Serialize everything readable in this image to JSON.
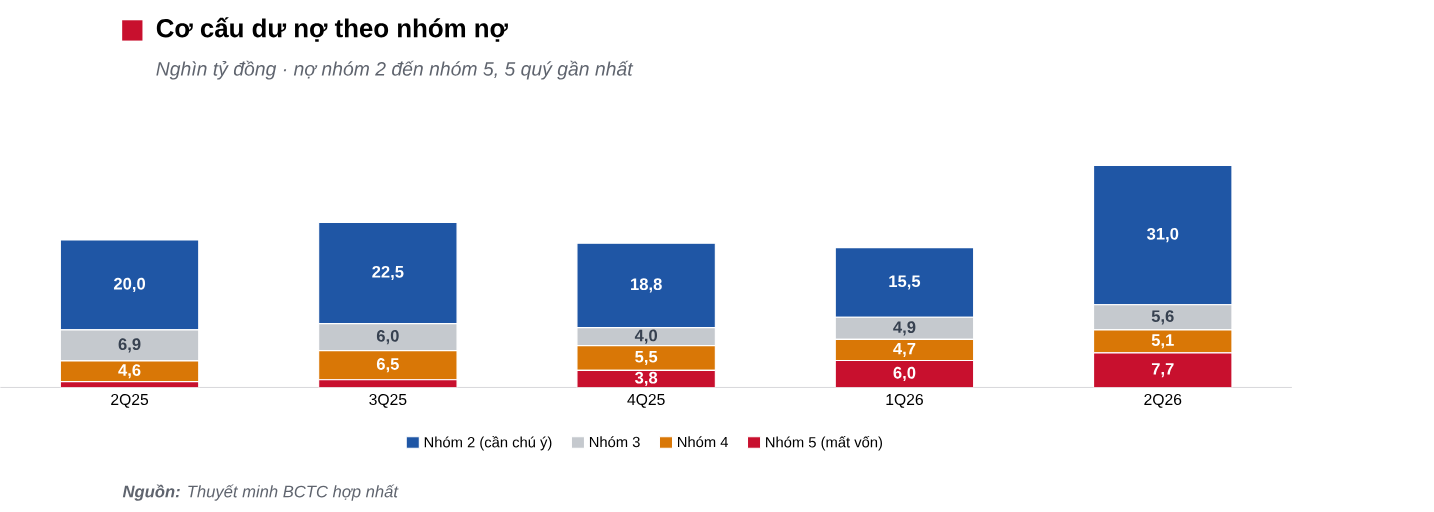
{
  "chart_data": {
    "type": "bar",
    "stacked": true,
    "title": "Cơ cấu dư nợ theo nhóm nợ",
    "subtitle": "Nghìn tỷ đồng · nợ nhóm 2 đến nhóm 5, 5 quý gần nhất",
    "categories": [
      "2Q25",
      "3Q25",
      "4Q25",
      "1Q26",
      "2Q26"
    ],
    "series": [
      {
        "name": "Nhóm 5 (mất vốn)",
        "color": "#c8102e",
        "values": [
          1.3,
          1.7,
          3.8,
          6.0,
          7.7
        ],
        "value_labels": [
          null,
          null,
          "3,8",
          "6,0",
          "7,7"
        ]
      },
      {
        "name": "Nhóm 4",
        "color": "#d97706",
        "values": [
          4.6,
          6.5,
          5.5,
          4.7,
          5.1
        ],
        "value_labels": [
          "4,6",
          "6,5",
          "5,5",
          "4,7",
          "5,1"
        ]
      },
      {
        "name": "Nhóm 3",
        "color": "#c5c9ce",
        "values": [
          6.9,
          6.0,
          4.0,
          4.9,
          5.6
        ],
        "value_labels": [
          "6,9",
          "6,0",
          "4,0",
          "4,9",
          "5,6"
        ]
      },
      {
        "name": "Nhóm 2 (cần chú ý)",
        "color": "#1f56a5",
        "values": [
          20.0,
          22.5,
          18.8,
          15.5,
          31.0
        ],
        "value_labels": [
          "20,0",
          "22,5",
          "18,8",
          "15,5",
          "31,0"
        ]
      }
    ],
    "legend": "bottom",
    "annotations": [
      "**Nguồn:** Thuyết minh BCTC hợp nhất"
    ]
  }
}
